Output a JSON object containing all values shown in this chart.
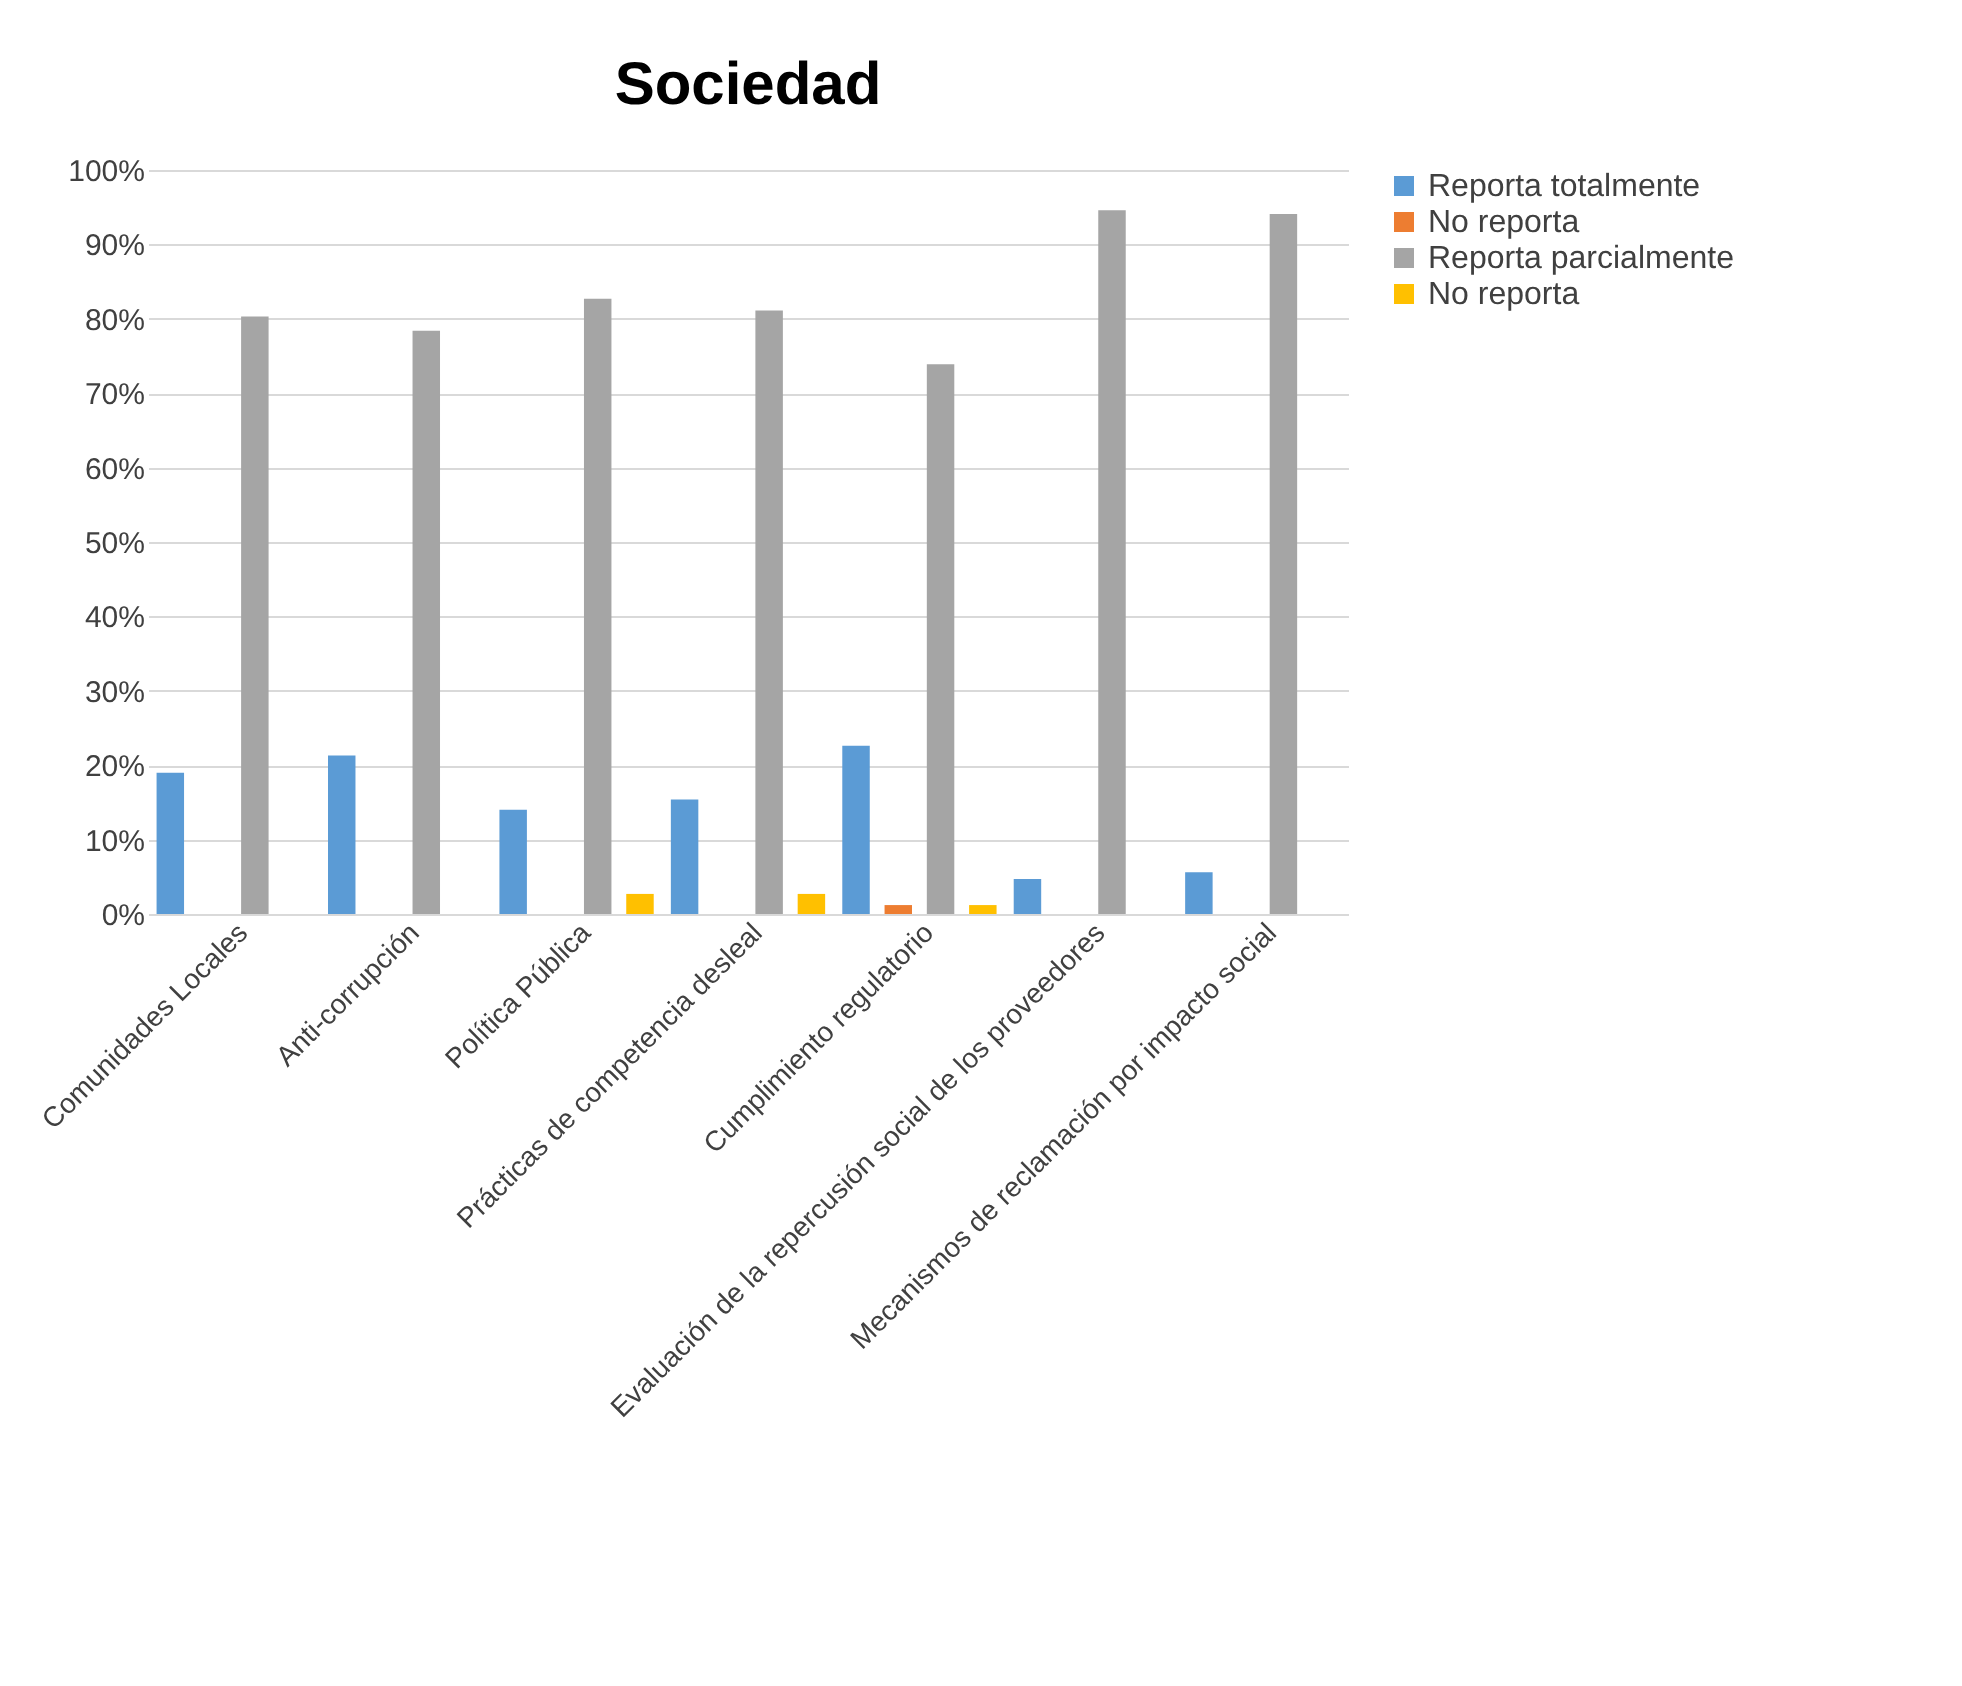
{
  "chart_data": {
    "type": "bar",
    "title": "Sociedad",
    "categories": [
      "Comunidades Locales",
      "Anti-corrupción",
      "Política Pública",
      "Prácticas de competencia desleal",
      "Cumplimiento regulatorio",
      "Evaluación de la repercusión social de los proveedores",
      "Mecanismos de reclamación por impacto social"
    ],
    "series": [
      {
        "name": "Reporta totalmente",
        "color": "#5b9bd5",
        "values": [
          19,
          21.3,
          14,
          15.4,
          22.6,
          4.7,
          5.6
        ]
      },
      {
        "name": "No reporta",
        "color": "#ed7d31",
        "values": [
          null,
          null,
          null,
          null,
          1.2,
          null,
          null
        ]
      },
      {
        "name": "Reporta parcialmente",
        "color": "#a5a5a5",
        "values": [
          80.3,
          78.4,
          82.7,
          81.1,
          73.9,
          94.6,
          94.1
        ]
      },
      {
        "name": "No reporta",
        "color": "#ffc000",
        "values": [
          null,
          null,
          2.7,
          2.7,
          1.2,
          null,
          null
        ]
      }
    ],
    "ylim": [
      0,
      100
    ],
    "yticks": [
      {
        "value": 0,
        "label": "0%"
      },
      {
        "value": 10,
        "label": "10%"
      },
      {
        "value": 20,
        "label": "20%"
      },
      {
        "value": 30,
        "label": "30%"
      },
      {
        "value": 40,
        "label": "40%"
      },
      {
        "value": 50,
        "label": "50%"
      },
      {
        "value": 60,
        "label": "60%"
      },
      {
        "value": 70,
        "label": "70%"
      },
      {
        "value": 80,
        "label": "80%"
      },
      {
        "value": 90,
        "label": "90%"
      },
      {
        "value": 100,
        "label": "100%"
      }
    ],
    "grid": "y",
    "legend": "right"
  }
}
